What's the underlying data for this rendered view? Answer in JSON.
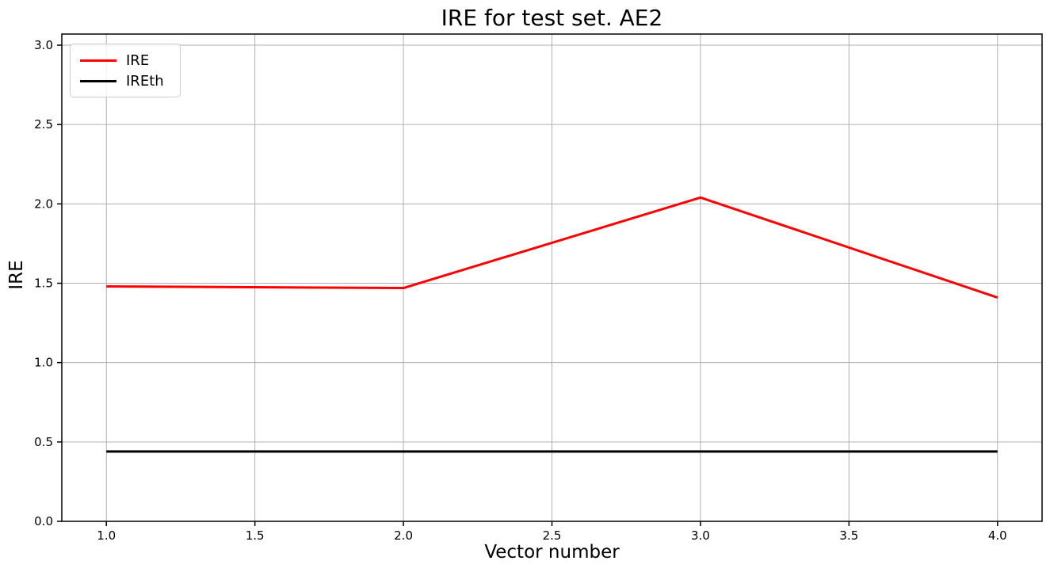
{
  "figure": {
    "title": "IRE for test set. AE2",
    "xlabel": "Vector number",
    "ylabel": "IRE",
    "legend": {
      "entries": [
        {
          "label": "IRE",
          "color": "#ff0000"
        },
        {
          "label": "IREth",
          "color": "#000000"
        }
      ]
    }
  },
  "chart_data": {
    "type": "line",
    "title": "IRE for test set. AE2",
    "xlabel": "Vector number",
    "ylabel": "IRE",
    "x": [
      1.0,
      2.0,
      3.0,
      4.0
    ],
    "series": [
      {
        "name": "IRE",
        "color": "#ff0000",
        "values": [
          1.48,
          1.47,
          2.04,
          1.41
        ]
      },
      {
        "name": "IREth",
        "color": "#000000",
        "values": [
          0.44,
          0.44,
          0.44,
          0.44
        ]
      }
    ],
    "xticks": [
      1.0,
      1.5,
      2.0,
      2.5,
      3.0,
      3.5,
      4.0
    ],
    "yticks": [
      0.0,
      0.5,
      1.0,
      1.5,
      2.0,
      2.5,
      3.0
    ],
    "xlim": [
      0.85,
      4.15
    ],
    "ylim": [
      0.0,
      3.07
    ],
    "grid": true,
    "grid_color": "#b0b0b0",
    "spine_color": "#000000",
    "tick_label_color": "#000000",
    "legend_position": "upper left",
    "line_width": 3
  }
}
